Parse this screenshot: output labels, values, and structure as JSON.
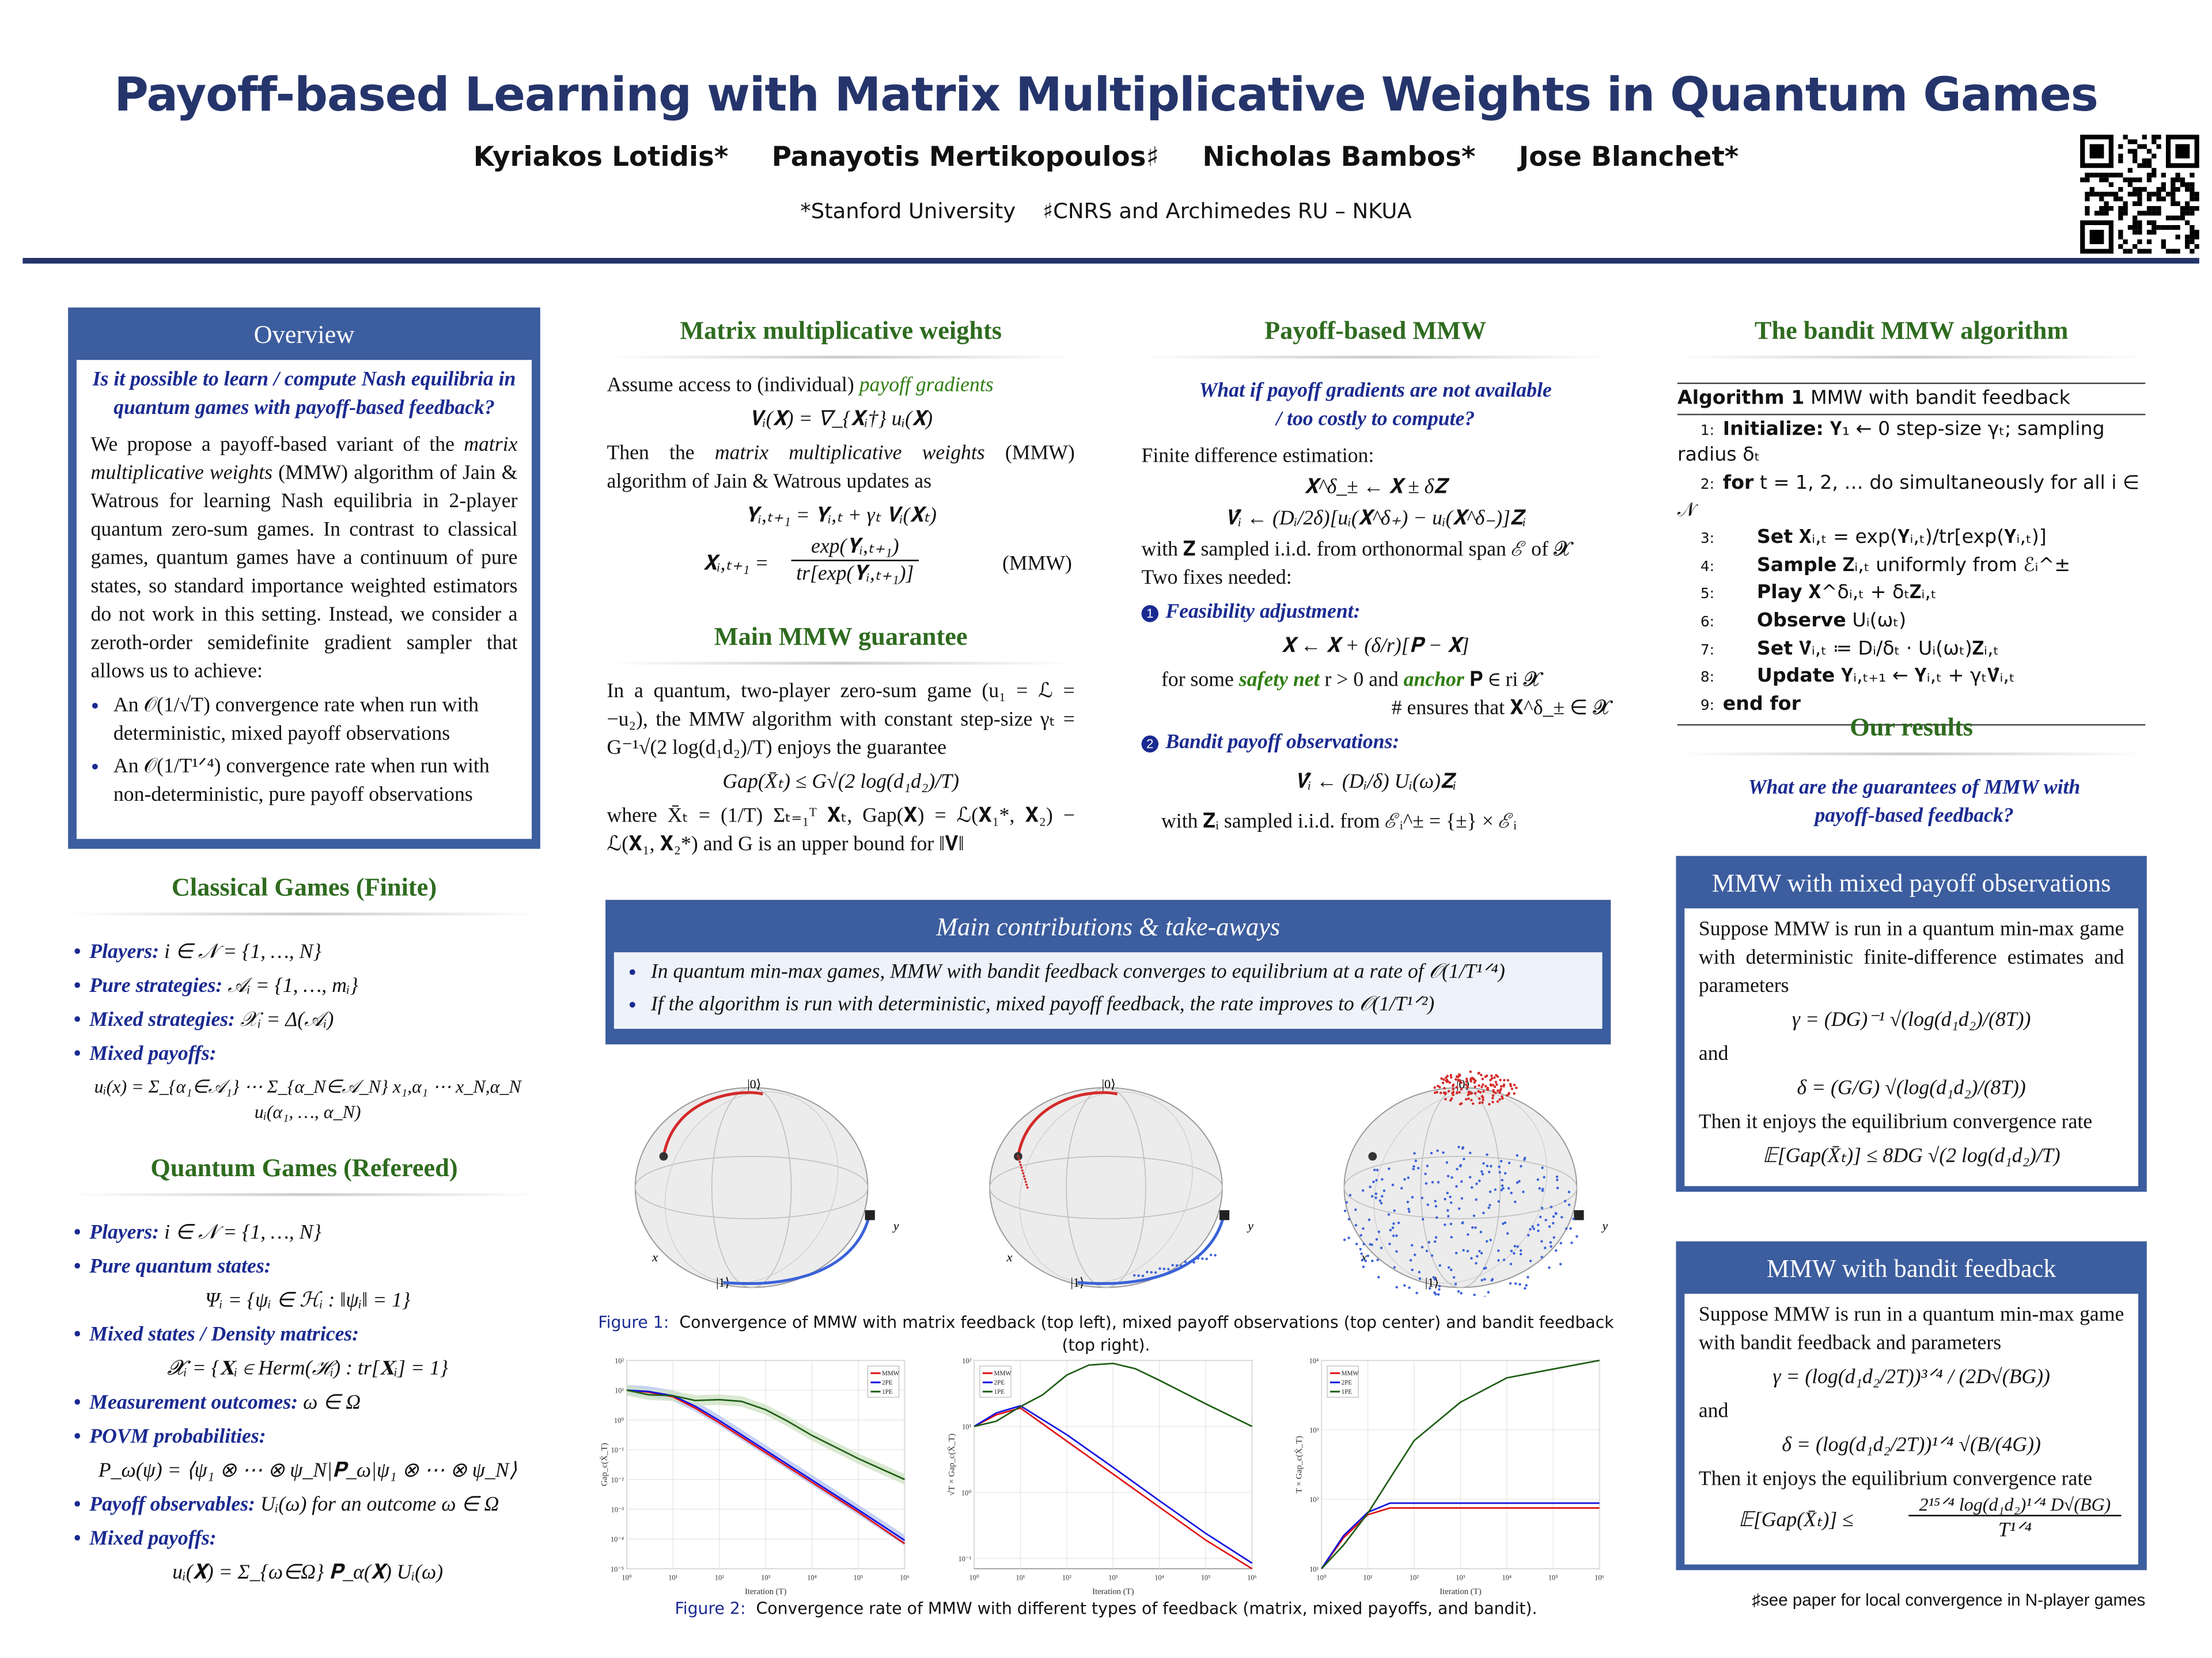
{
  "header": {
    "title": "Payoff-based Learning with Matrix Multiplicative Weights in Quantum Games",
    "authors": [
      "Kyriakos Lotidis*",
      "Panayotis Mertikopoulos♯",
      "Nicholas Bambos*",
      "Jose Blanchet*"
    ],
    "affiliations": [
      "*Stanford University",
      "♯CNRS and Archimedes RU – NKUA"
    ]
  },
  "overview": {
    "title": "Overview",
    "question": "Is it possible to learn / compute Nash equilibria in quantum games with payoff-based feedback?",
    "p1": "We propose a payoff-based variant of the ",
    "p_em": "matrix multiplicative weights",
    "p2": " (MMW) algorithm of Jain & Watrous for learning Nash equilibria in 2-player quantum zero-sum games. In contrast to classical games, quantum games have a continuum of pure states, so standard importance weighted estimators do not work in this setting. Instead, we consider a zeroth-order semidefinite gradient sampler that allows us to achieve:",
    "bullets": [
      "An 𝒪(1/√T) convergence rate when run with deterministic, mixed payoff observations",
      "An 𝒪(1/T¹ᐟ⁴) convergence rate when run with non-deterministic, pure payoff observations"
    ]
  },
  "classical": {
    "title": "Classical Games (Finite)",
    "items": [
      {
        "label": "Players:",
        "text": " i ∈ 𝒩 = {1, …, N}"
      },
      {
        "label": "Pure strategies:",
        "text": " 𝒜ᵢ = {1, …, mᵢ}"
      },
      {
        "label": "Mixed strategies:",
        "text": " 𝒳ᵢ = Δ(𝒜ᵢ)"
      },
      {
        "label": "Mixed payoffs:",
        "text": ""
      }
    ],
    "formula": "uᵢ(x) = Σ_{α₁∈𝒜₁} ⋯ Σ_{α_N∈𝒜_N} x₁,α₁ ⋯ x_N,α_N uᵢ(α₁, …, α_N)"
  },
  "quantum": {
    "title": "Quantum Games (Refereed)",
    "items": [
      {
        "label": "Players:",
        "text": " i ∈ 𝒩 = {1, …, N}",
        "formula": ""
      },
      {
        "label": "Pure quantum states:",
        "text": "",
        "formula": "Ψᵢ = {ψᵢ ∈ ℋᵢ : ‖ψᵢ‖ = 1}"
      },
      {
        "label": "Mixed states / Density matrices:",
        "text": "",
        "formula": "𝓧ᵢ = {𝐗ᵢ ∈ Herm(ℋᵢ) : tr[𝐗ᵢ] = 1}"
      },
      {
        "label": "Measurement outcomes:",
        "text": " ω ∈ Ω",
        "formula": ""
      },
      {
        "label": "POVM probabilities:",
        "text": "",
        "formula": "P_ω(ψ) = ⟨ψ₁ ⊗ ⋯ ⊗ ψ_N|𝐏_ω|ψ₁ ⊗ ⋯ ⊗ ψ_N⟩"
      },
      {
        "label": "Payoff observables:",
        "text": " Uᵢ(ω) for an outcome ω ∈ Ω",
        "formula": ""
      },
      {
        "label": "Mixed payoffs:",
        "text": "",
        "formula": "uᵢ(𝐗) = Σ_{ω∈Ω} 𝐏_α(𝐗) Uᵢ(ω)"
      }
    ]
  },
  "mmw": {
    "title": "Matrix multiplicative weights",
    "l1": "Assume access to (individual) ",
    "l1_em": "payoff gradients",
    "f1": "𝐕ᵢ(𝐗) = ∇_{𝐗ᵢ†} uᵢ(𝐗)",
    "l2a": "Then the ",
    "l2_em": "matrix multiplicative weights",
    "l2b": " (MMW) algorithm of Jain & Watrous updates as",
    "f2": "𝐘ᵢ,ₜ₊₁ = 𝐘ᵢ,ₜ + γₜ 𝐕ᵢ(𝐗ₜ)",
    "f3_lhs": "𝐗ᵢ,ₜ₊₁ =",
    "f3_num": "exp(𝐘ᵢ,ₜ₊₁)",
    "f3_den": "tr[exp(𝐘ᵢ,ₜ₊₁)]",
    "tag": "(MMW)"
  },
  "guarantee": {
    "title": "Main MMW guarantee",
    "p1": "In a quantum, two-player zero-sum game (u₁ = ℒ = −u₂), the MMW algorithm with constant step-size γₜ = G⁻¹√(2 log(d₁d₂)/T) enjoys the guarantee",
    "f": "Gap(X̄ₜ) ≤ G√(2 log(d₁d₂)/T)",
    "p2": "where X̄ₜ = (1/T) Σₜ₌₁ᵀ 𝐗ₜ, Gap(𝐗) = ℒ(𝐗₁*, 𝐗₂) − ℒ(𝐗₁, 𝐗₂*) and G is an upper bound for ‖𝐕‖"
  },
  "payoff_mmw": {
    "title": "Payoff-based MMW",
    "question": "What if payoff gradients are not available / too costly to compute?",
    "l1": "Finite difference estimation:",
    "f1": "𝐗^δ_± ← 𝐗 ± δ𝐙",
    "f2": "𝐕̂ᵢ ← (Dᵢ/2δ)[uᵢ(𝐗^δ₊) − uᵢ(𝐗^δ₋)]𝐙ᵢ",
    "l2": "with 𝐙 sampled i.i.d. from orthonormal span ℰ of 𝓧",
    "l3": "Two fixes needed:",
    "fix1_num": "1",
    "fix1": "Feasibility adjustment:",
    "f3": "𝐗 ← 𝐗 + (δ/r)[𝐏 − 𝐗]",
    "l4a": "for some ",
    "l4_g1": "safety net",
    "l4b": " r > 0 and ",
    "l4_g2": "anchor",
    "l4c": " 𝐏 ∈ ri 𝓧",
    "l5": "# ensures that 𝐗^δ_± ∈ 𝓧",
    "fix2_num": "2",
    "fix2": "Bandit payoff observations:",
    "f4": "𝐕̂ᵢ ← (Dᵢ/δ) Uᵢ(ω)𝐙ᵢ",
    "l6": "with 𝐙ᵢ sampled i.i.d. from ℰᵢ^± = {±} × ℰᵢ"
  },
  "contrib": {
    "title": "Main contributions & take-aways",
    "items": [
      "In quantum min-max games, MMW with bandit feedback converges to equilibrium at a rate of 𝒪(1/T¹ᐟ⁴)",
      "If the algorithm is run with deterministic, mixed payoff feedback, the rate improves to 𝒪(1/T¹ᐟ²)"
    ]
  },
  "figure1": {
    "label": "Figure 1:",
    "caption": "Convergence of MMW with matrix feedback (top left), mixed payoff observations (top center) and bandit feedback (top right).",
    "sphere_labels": {
      "top": "|0⟩",
      "bottom": "|1⟩",
      "x": "x",
      "y": "y"
    },
    "colors": {
      "player1": "#d42a2a",
      "player2": "#3a62d8"
    }
  },
  "figure2": {
    "label": "Figure 2:",
    "caption": "Convergence rate of MMW with different types of feedback (matrix, mixed payoffs, and bandit)."
  },
  "chart_data": [
    {
      "type": "line",
      "xscale": "log",
      "yscale": "log",
      "xlabel": "Iteration (T)",
      "ylabel": "Gap_c(X̄_T)",
      "xlim": [
        1,
        1000000
      ],
      "ylim": [
        1e-05,
        100
      ],
      "xticks": [
        "10⁰",
        "10¹",
        "10²",
        "10³",
        "10⁴",
        "10⁵",
        "10⁶"
      ],
      "yticks": [
        "10⁻⁵",
        "10⁻⁴",
        "10⁻³",
        "10⁻²",
        "10⁻¹",
        "10⁰",
        "10¹",
        "10²"
      ],
      "legend": "top-right",
      "grid": true,
      "series": [
        {
          "name": "MMW",
          "color": "#e01010",
          "x": [
            1,
            3,
            10,
            30,
            100,
            1000,
            10000,
            100000,
            1000000
          ],
          "y": [
            10,
            8.5,
            6,
            2.5,
            0.8,
            0.08,
            0.008,
            0.0008,
            7e-05
          ]
        },
        {
          "name": "2PE",
          "color": "#1010e0",
          "x": [
            1,
            3,
            10,
            30,
            100,
            1000,
            10000,
            100000,
            1000000
          ],
          "y": [
            10,
            9,
            6.5,
            2.9,
            0.95,
            0.095,
            0.0095,
            0.00095,
            9e-05
          ]
        },
        {
          "name": "1PE",
          "color": "#1e5e14",
          "x": [
            1,
            3,
            10,
            30,
            100,
            300,
            1000,
            3000,
            10000,
            100000,
            1000000
          ],
          "y": [
            10,
            7,
            6.5,
            4.5,
            4.8,
            4.2,
            2.2,
            0.9,
            0.3,
            0.05,
            0.01
          ]
        }
      ]
    },
    {
      "type": "line",
      "xscale": "log",
      "yscale": "log",
      "xlabel": "Iteration (T)",
      "ylabel": "√T × Gap_c(X̄_T)",
      "xlim": [
        1,
        1000000
      ],
      "ylim": [
        0.07,
        100
      ],
      "xticks": [
        "10⁰",
        "10¹",
        "10²",
        "10³",
        "10⁴",
        "10⁵",
        "10⁶"
      ],
      "yticks": [
        "10⁻¹",
        "10⁰",
        "10¹",
        "10²"
      ],
      "legend": "top-left",
      "grid": true,
      "series": [
        {
          "name": "MMW",
          "color": "#e01010",
          "x": [
            1,
            3,
            10,
            100,
            1000,
            10000,
            100000,
            1000000
          ],
          "y": [
            10,
            15,
            19,
            6,
            1.9,
            0.6,
            0.19,
            0.07
          ]
        },
        {
          "name": "2PE",
          "color": "#1010e0",
          "x": [
            1,
            3,
            10,
            100,
            1000,
            10000,
            100000,
            1000000
          ],
          "y": [
            10,
            16,
            20.5,
            7.5,
            2.4,
            0.75,
            0.24,
            0.085
          ]
        },
        {
          "name": "1PE",
          "color": "#1e5e14",
          "x": [
            1,
            3,
            10,
            30,
            100,
            300,
            1000,
            3000,
            10000,
            100000,
            1000000
          ],
          "y": [
            10,
            12,
            20,
            30,
            60,
            85,
            90,
            75,
            50,
            22,
            10
          ]
        }
      ]
    },
    {
      "type": "line",
      "xscale": "log",
      "yscale": "log",
      "xlabel": "Iteration (T)",
      "ylabel": "T × Gap_c(X̄_T)",
      "xlim": [
        1,
        1000000
      ],
      "ylim": [
        10,
        10000
      ],
      "xticks": [
        "10⁰",
        "10¹",
        "10²",
        "10³",
        "10⁴",
        "10⁵",
        "10⁶"
      ],
      "yticks": [
        "10¹",
        "10²",
        "10³",
        "10⁴"
      ],
      "legend": "top-left",
      "grid": true,
      "series": [
        {
          "name": "MMW",
          "color": "#e01010",
          "x": [
            1,
            3,
            10,
            30,
            100,
            1000000
          ],
          "y": [
            10,
            28,
            60,
            75,
            75,
            75
          ]
        },
        {
          "name": "2PE",
          "color": "#1010e0",
          "x": [
            1,
            3,
            10,
            30,
            100,
            1000000
          ],
          "y": [
            10,
            30,
            65,
            88,
            88,
            88
          ]
        },
        {
          "name": "1PE",
          "color": "#1e5e14",
          "x": [
            1,
            3,
            10,
            30,
            100,
            1000,
            10000,
            100000,
            1000000
          ],
          "y": [
            10,
            22,
            63,
            200,
            700,
            2500,
            5600,
            7500,
            10000
          ]
        }
      ]
    }
  ],
  "algorithm": {
    "title": "The bandit MMW algorithm",
    "name": "Algorithm 1",
    "caption": "MMW with bandit feedback",
    "lines": [
      {
        "n": "1:",
        "kw": "Initialize:",
        "text": " 𝐘₁ ← 0 step-size γₜ; sampling radius δₜ",
        "indent": false
      },
      {
        "n": "2:",
        "kw": "for",
        "text": " t = 1, 2, …  do simultaneously for all i ∈ 𝒩",
        "indent": false
      },
      {
        "n": "3:",
        "kw": "Set",
        "text": " 𝐗ᵢ,ₜ = exp(𝐘ᵢ,ₜ)/tr[exp(𝐘ᵢ,ₜ)]",
        "indent": true
      },
      {
        "n": "4:",
        "kw": "Sample",
        "text": " 𝐙ᵢ,ₜ uniformly from ℰᵢ^±",
        "indent": true
      },
      {
        "n": "5:",
        "kw": "Play",
        "text": " 𝐗^δᵢ,ₜ + δₜ𝐙ᵢ,ₜ",
        "indent": true
      },
      {
        "n": "6:",
        "kw": "Observe",
        "text": " Uᵢ(ωₜ)",
        "indent": true
      },
      {
        "n": "7:",
        "kw": "Set",
        "text": " 𝐕̂ᵢ,ₜ ≔ Dᵢ/δₜ · Uᵢ(ωₜ)𝐙ᵢ,ₜ",
        "indent": true
      },
      {
        "n": "8:",
        "kw": "Update",
        "text": " 𝐘ᵢ,ₜ₊₁ ← 𝐘ᵢ,ₜ + γₜ𝐕̂ᵢ,ₜ",
        "indent": true
      },
      {
        "n": "9:",
        "kw": "end for",
        "text": "",
        "indent": false
      }
    ]
  },
  "results": {
    "title": "Our results",
    "question": "What are the guarantees of MMW with payoff-based feedback?",
    "mixed": {
      "title": "MMW with mixed payoff observations",
      "p1": "Suppose MMW is run in a quantum min-max game with deterministic finite-difference estimates and parameters",
      "f1": "γ = (DG)⁻¹ √(log(d₁d₂)/(8T))",
      "and": "and",
      "f2": "δ = (G/G) √(log(d₁d₂)/(8T))",
      "p2": "Then it enjoys the equilibrium convergence rate",
      "f3": "𝔼[Gap(X̄ₜ)] ≤ 8DG √(2 log(d₁d₂)/T)"
    },
    "bandit": {
      "title": "MMW with bandit feedback",
      "p1": "Suppose MMW is run in a quantum min-max game with bandit feedback and parameters",
      "f1": "γ = (log(d₁d₂/2T))³ᐟ⁴ / (2D√(BG))",
      "and": "and",
      "f2": "δ = (log(d₁d₂/2T))¹ᐟ⁴ √(B/(4G))",
      "p2": "Then it enjoys the equilibrium convergence rate",
      "f3_lhs": "𝔼[Gap(X̄ₜ)] ≤",
      "f3_num": "2¹⁵ᐟ⁴ log(d₁d₂)¹ᐟ⁴ D√(BG)",
      "f3_den": "T¹ᐟ⁴"
    },
    "footnote": "♯see paper for local convergence in N-player games"
  }
}
